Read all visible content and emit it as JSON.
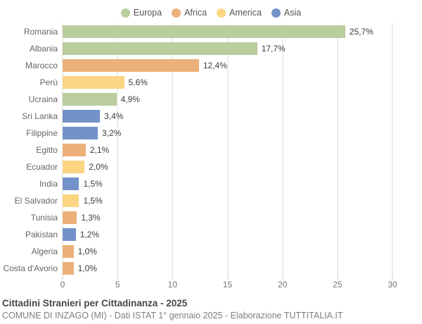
{
  "chart_data": {
    "type": "bar",
    "orientation": "horizontal",
    "title": "Cittadini Stranieri per Cittadinanza - 2025",
    "subtitle": "COMUNE DI INZAGO (MI) - Dati ISTAT 1° gennaio 2025 - Elaborazione TUTTITALIA.IT",
    "legend": [
      "Europa",
      "Africa",
      "America",
      "Asia"
    ],
    "legend_position": "top",
    "group_colors": {
      "Europa": "#b9cd9d",
      "Africa": "#ecb07a",
      "America": "#fcd583",
      "Asia": "#7392c9"
    },
    "categories": [
      "Romania",
      "Albania",
      "Marocco",
      "Perù",
      "Ucraina",
      "Sri Lanka",
      "Filippine",
      "Egitto",
      "Ecuador",
      "India",
      "El Salvador",
      "Tunisia",
      "Pakistan",
      "Algeria",
      "Costa d'Avorio"
    ],
    "values": [
      25.7,
      17.7,
      12.4,
      5.6,
      4.9,
      3.4,
      3.2,
      2.1,
      2.0,
      1.5,
      1.5,
      1.3,
      1.2,
      1.0,
      1.0
    ],
    "value_labels": [
      "25,7%",
      "17,7%",
      "12,4%",
      "5,6%",
      "4,9%",
      "3,4%",
      "3,2%",
      "2,1%",
      "2,0%",
      "1,5%",
      "1,5%",
      "1,3%",
      "1,2%",
      "1,0%",
      "1,0%"
    ],
    "groups": [
      "Europa",
      "Europa",
      "Africa",
      "America",
      "Europa",
      "Asia",
      "Asia",
      "Africa",
      "America",
      "Asia",
      "America",
      "Africa",
      "Asia",
      "Africa",
      "Africa"
    ],
    "xlim": [
      0,
      30
    ],
    "xticks": [
      0,
      5,
      10,
      15,
      20,
      25,
      30
    ],
    "grid": true
  },
  "grid_color": "#d9d9d9",
  "tick_color": "#c6c6c6"
}
